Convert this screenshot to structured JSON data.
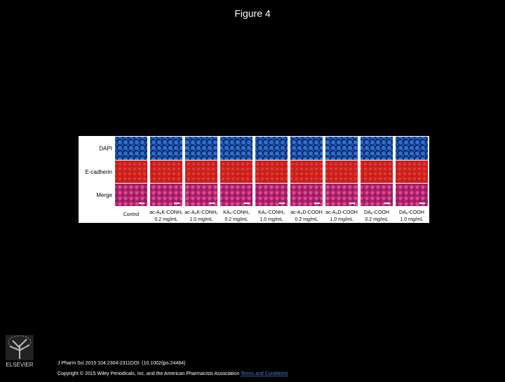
{
  "header": {
    "title": "Figure 4"
  },
  "figure": {
    "rows": [
      "DAPI",
      "E-cadherin",
      "Merge"
    ],
    "columns": [
      {
        "name": "Control"
      },
      {
        "name": "ac-A₆K-CONH₂",
        "conc": "0.2 mg/mL"
      },
      {
        "name": "ac-A₆K-CONH₂",
        "conc": "1.0 mg/mL"
      },
      {
        "name": "KA₆-CONH₂",
        "conc": "0.2 mg/mL"
      },
      {
        "name": "KA₆-CONH₂",
        "conc": "1.0 mg/mL"
      },
      {
        "name": "ac-A₆D-COOH",
        "conc": "0.2 mg/mL"
      },
      {
        "name": "ac-A₆D-COOH",
        "conc": "1.0 mg/mL"
      },
      {
        "name": "DA₆-COOH",
        "conc": "0.2 mg/mL"
      },
      {
        "name": "DA₆-COOH",
        "conc": "1.0 mg/mL"
      }
    ]
  },
  "footer": {
    "logo": "ELSEVIER",
    "citation": "J Pharm Sci 2015 104:2304-2311DOI: (10.1002/jps.24484)",
    "copyright": "Copyright © 2015 Wiley Periodicals, Inc. and the American Pharmacists Association",
    "link": "Terms and Conditions"
  }
}
